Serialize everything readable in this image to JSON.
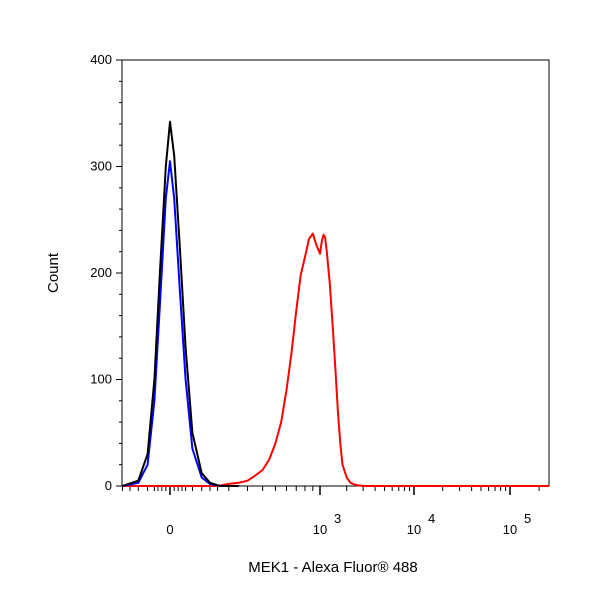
{
  "chart_data": {
    "type": "line",
    "title": "",
    "xlabel": "MEK1 - Alexa Fluor® 488",
    "ylabel": "Count",
    "xscale": "biexponential",
    "ylim": [
      0,
      400
    ],
    "yticks": [
      "0",
      "100",
      "200",
      "300",
      "400"
    ],
    "xticks": [
      {
        "base": "0",
        "exp": ""
      },
      {
        "base": "10",
        "exp": "3"
      },
      {
        "base": "10",
        "exp": "4"
      },
      {
        "base": "10",
        "exp": "5"
      }
    ],
    "grid": false,
    "legend": "none",
    "series": [
      {
        "color": "#000000",
        "x": [
          -150,
          -90,
          -60,
          -40,
          -25,
          -10,
          0,
          10,
          25,
          40,
          60,
          90,
          120,
          160,
          250
        ],
        "y": [
          0,
          5,
          30,
          100,
          200,
          300,
          342,
          310,
          220,
          130,
          50,
          12,
          3,
          0,
          0
        ]
      },
      {
        "color": "#0000ff",
        "x": [
          -150,
          -90,
          -60,
          -40,
          -25,
          -10,
          0,
          10,
          25,
          40,
          60,
          90,
          120,
          160,
          250
        ],
        "y": [
          0,
          3,
          20,
          80,
          170,
          270,
          305,
          270,
          180,
          100,
          35,
          8,
          2,
          0,
          0
        ]
      },
      {
        "color": "#ff0000",
        "x": [
          -500,
          150,
          200,
          250,
          300,
          350,
          400,
          450,
          500,
          550,
          600,
          650,
          700,
          750,
          800,
          850,
          900,
          950,
          1000,
          1050,
          1100,
          1150,
          1200,
          1300,
          1400,
          1500,
          1600,
          1700,
          1800,
          2000,
          2200,
          2500,
          3000,
          4000,
          10000,
          100000,
          300000
        ],
        "y": [
          0,
          0,
          2,
          3,
          5,
          10,
          15,
          25,
          40,
          60,
          90,
          125,
          165,
          198,
          215,
          232,
          237,
          226,
          218,
          230,
          236,
          233,
          220,
          190,
          150,
          110,
          70,
          40,
          20,
          8,
          3,
          1,
          0,
          0,
          0,
          0,
          0
        ]
      }
    ]
  }
}
